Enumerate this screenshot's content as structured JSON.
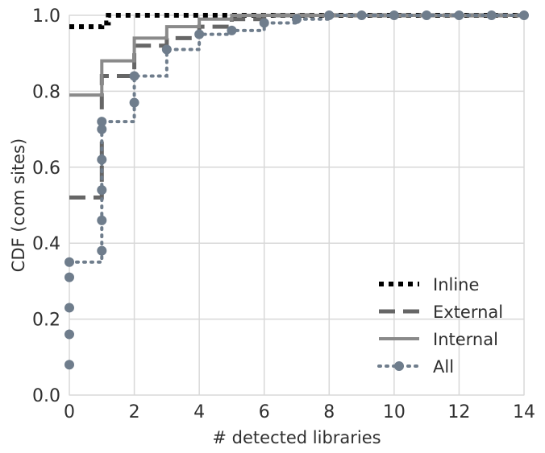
{
  "chart_data": {
    "type": "line",
    "title": "",
    "xlabel": "# detected libraries",
    "ylabel": "CDF (com sites)",
    "xlim": [
      0,
      14
    ],
    "ylim": [
      0,
      1.0
    ],
    "x_ticks": [
      0,
      2,
      4,
      6,
      8,
      10,
      12,
      14
    ],
    "y_ticks": [
      0.0,
      0.2,
      0.4,
      0.6,
      0.8,
      1.0
    ],
    "x_tick_labels": [
      "0",
      "2",
      "4",
      "6",
      "8",
      "10",
      "12",
      "14"
    ],
    "y_tick_labels": [
      "0.0",
      "0.2",
      "0.4",
      "0.6",
      "0.8",
      "1.0"
    ],
    "grid": true,
    "legend_position": "lower-right",
    "series": [
      {
        "name": "Inline",
        "style": "dotted-thick",
        "color": "#000000",
        "marker": "none",
        "points": [
          {
            "x": 0,
            "y": 0.97
          },
          {
            "x": 1,
            "y": 0.98
          },
          {
            "x": 1.2,
            "y": 1.0
          },
          {
            "x": 14,
            "y": 1.0
          }
        ]
      },
      {
        "name": "External",
        "style": "dashed",
        "color": "#666666",
        "marker": "none",
        "points": [
          {
            "x": 0,
            "y": 0.52
          },
          {
            "x": 1,
            "y": 0.84
          },
          {
            "x": 2,
            "y": 0.92
          },
          {
            "x": 3,
            "y": 0.94
          },
          {
            "x": 4,
            "y": 0.97
          },
          {
            "x": 5,
            "y": 0.99
          },
          {
            "x": 6,
            "y": 1.0
          },
          {
            "x": 14,
            "y": 1.0
          }
        ]
      },
      {
        "name": "Internal",
        "style": "solid",
        "color": "#8a8a8a",
        "marker": "none",
        "points": [
          {
            "x": 0,
            "y": 0.79
          },
          {
            "x": 1,
            "y": 0.88
          },
          {
            "x": 2,
            "y": 0.94
          },
          {
            "x": 3,
            "y": 0.97
          },
          {
            "x": 4,
            "y": 0.99
          },
          {
            "x": 5,
            "y": 1.0
          },
          {
            "x": 14,
            "y": 1.0
          }
        ]
      },
      {
        "name": "All",
        "style": "dotted",
        "color": "#6f7d8c",
        "marker": "circle",
        "points": [
          {
            "x": 0,
            "y": 0.35
          },
          {
            "x": 1,
            "y": 0.72
          },
          {
            "x": 2,
            "y": 0.84
          },
          {
            "x": 3,
            "y": 0.91
          },
          {
            "x": 4,
            "y": 0.95
          },
          {
            "x": 5,
            "y": 0.96
          },
          {
            "x": 6,
            "y": 0.98
          },
          {
            "x": 7,
            "y": 0.99
          },
          {
            "x": 8,
            "y": 1.0
          },
          {
            "x": 9,
            "y": 1.0
          },
          {
            "x": 10,
            "y": 1.0
          },
          {
            "x": 11,
            "y": 1.0
          },
          {
            "x": 12,
            "y": 1.0
          },
          {
            "x": 13,
            "y": 1.0
          },
          {
            "x": 14,
            "y": 1.0
          }
        ],
        "vertical_markers": [
          {
            "x": 0,
            "y": 0.08
          },
          {
            "x": 0,
            "y": 0.16
          },
          {
            "x": 0,
            "y": 0.23
          },
          {
            "x": 0,
            "y": 0.31
          },
          {
            "x": 1,
            "y": 0.38
          },
          {
            "x": 1,
            "y": 0.46
          },
          {
            "x": 1,
            "y": 0.54
          },
          {
            "x": 1,
            "y": 0.62
          },
          {
            "x": 1,
            "y": 0.7
          },
          {
            "x": 2,
            "y": 0.77
          }
        ]
      }
    ]
  }
}
